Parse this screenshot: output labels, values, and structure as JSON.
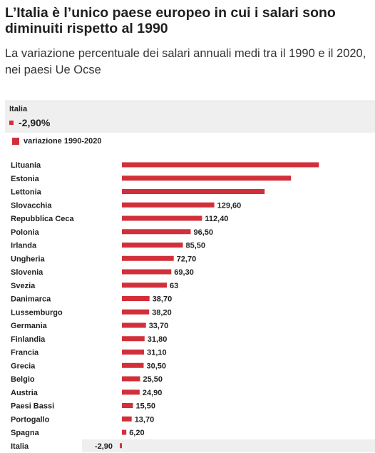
{
  "header": {
    "title": "L’Italia è l’unico paese europeo in cui i salari sono diminuiti rispetto al 1990",
    "subtitle": "La variazione percentuale dei salari annuali medi tra il 1990 e il 2020, nei paesi Ue Ocse"
  },
  "tooltip": {
    "country": "Italia",
    "value": "-2,90%"
  },
  "legend": {
    "label": "variazione 1990-2020"
  },
  "colors": {
    "bar": "#d1303a",
    "highlight_row": "#efefef"
  },
  "chart_data": {
    "type": "bar",
    "orientation": "horizontal",
    "categories": [
      "Lituania",
      "Estonia",
      "Lettonia",
      "Slovacchia",
      "Repubblica Ceca",
      "Polonia",
      "Irlanda",
      "Ungheria",
      "Slovenia",
      "Svezia",
      "Danimarca",
      "Lussemburgo",
      "Germania",
      "Finlandia",
      "Francia",
      "Grecia",
      "Belgio",
      "Austria",
      "Paesi Bassi",
      "Portogallo",
      "Spagna",
      "Italia"
    ],
    "series": [
      {
        "name": "variazione 1990-2020",
        "values": [
          276.3,
          237.2,
          200.2,
          129.6,
          112.4,
          96.5,
          85.5,
          72.7,
          69.3,
          63,
          38.7,
          38.2,
          33.7,
          31.8,
          31.1,
          30.5,
          25.5,
          24.9,
          15.5,
          13.7,
          6.2,
          -2.9
        ],
        "labels": [
          "",
          "",
          "",
          "129,60",
          "112,40",
          "96,50",
          "85,50",
          "72,70",
          "69,30",
          "63",
          "38,70",
          "38,20",
          "33,70",
          "31,80",
          "31,10",
          "30,50",
          "25,50",
          "24,90",
          "15,50",
          "13,70",
          "6,20",
          "-2,90"
        ]
      }
    ],
    "highlighted_category": "Italia",
    "legend_position": "top-left",
    "grid": false
  }
}
